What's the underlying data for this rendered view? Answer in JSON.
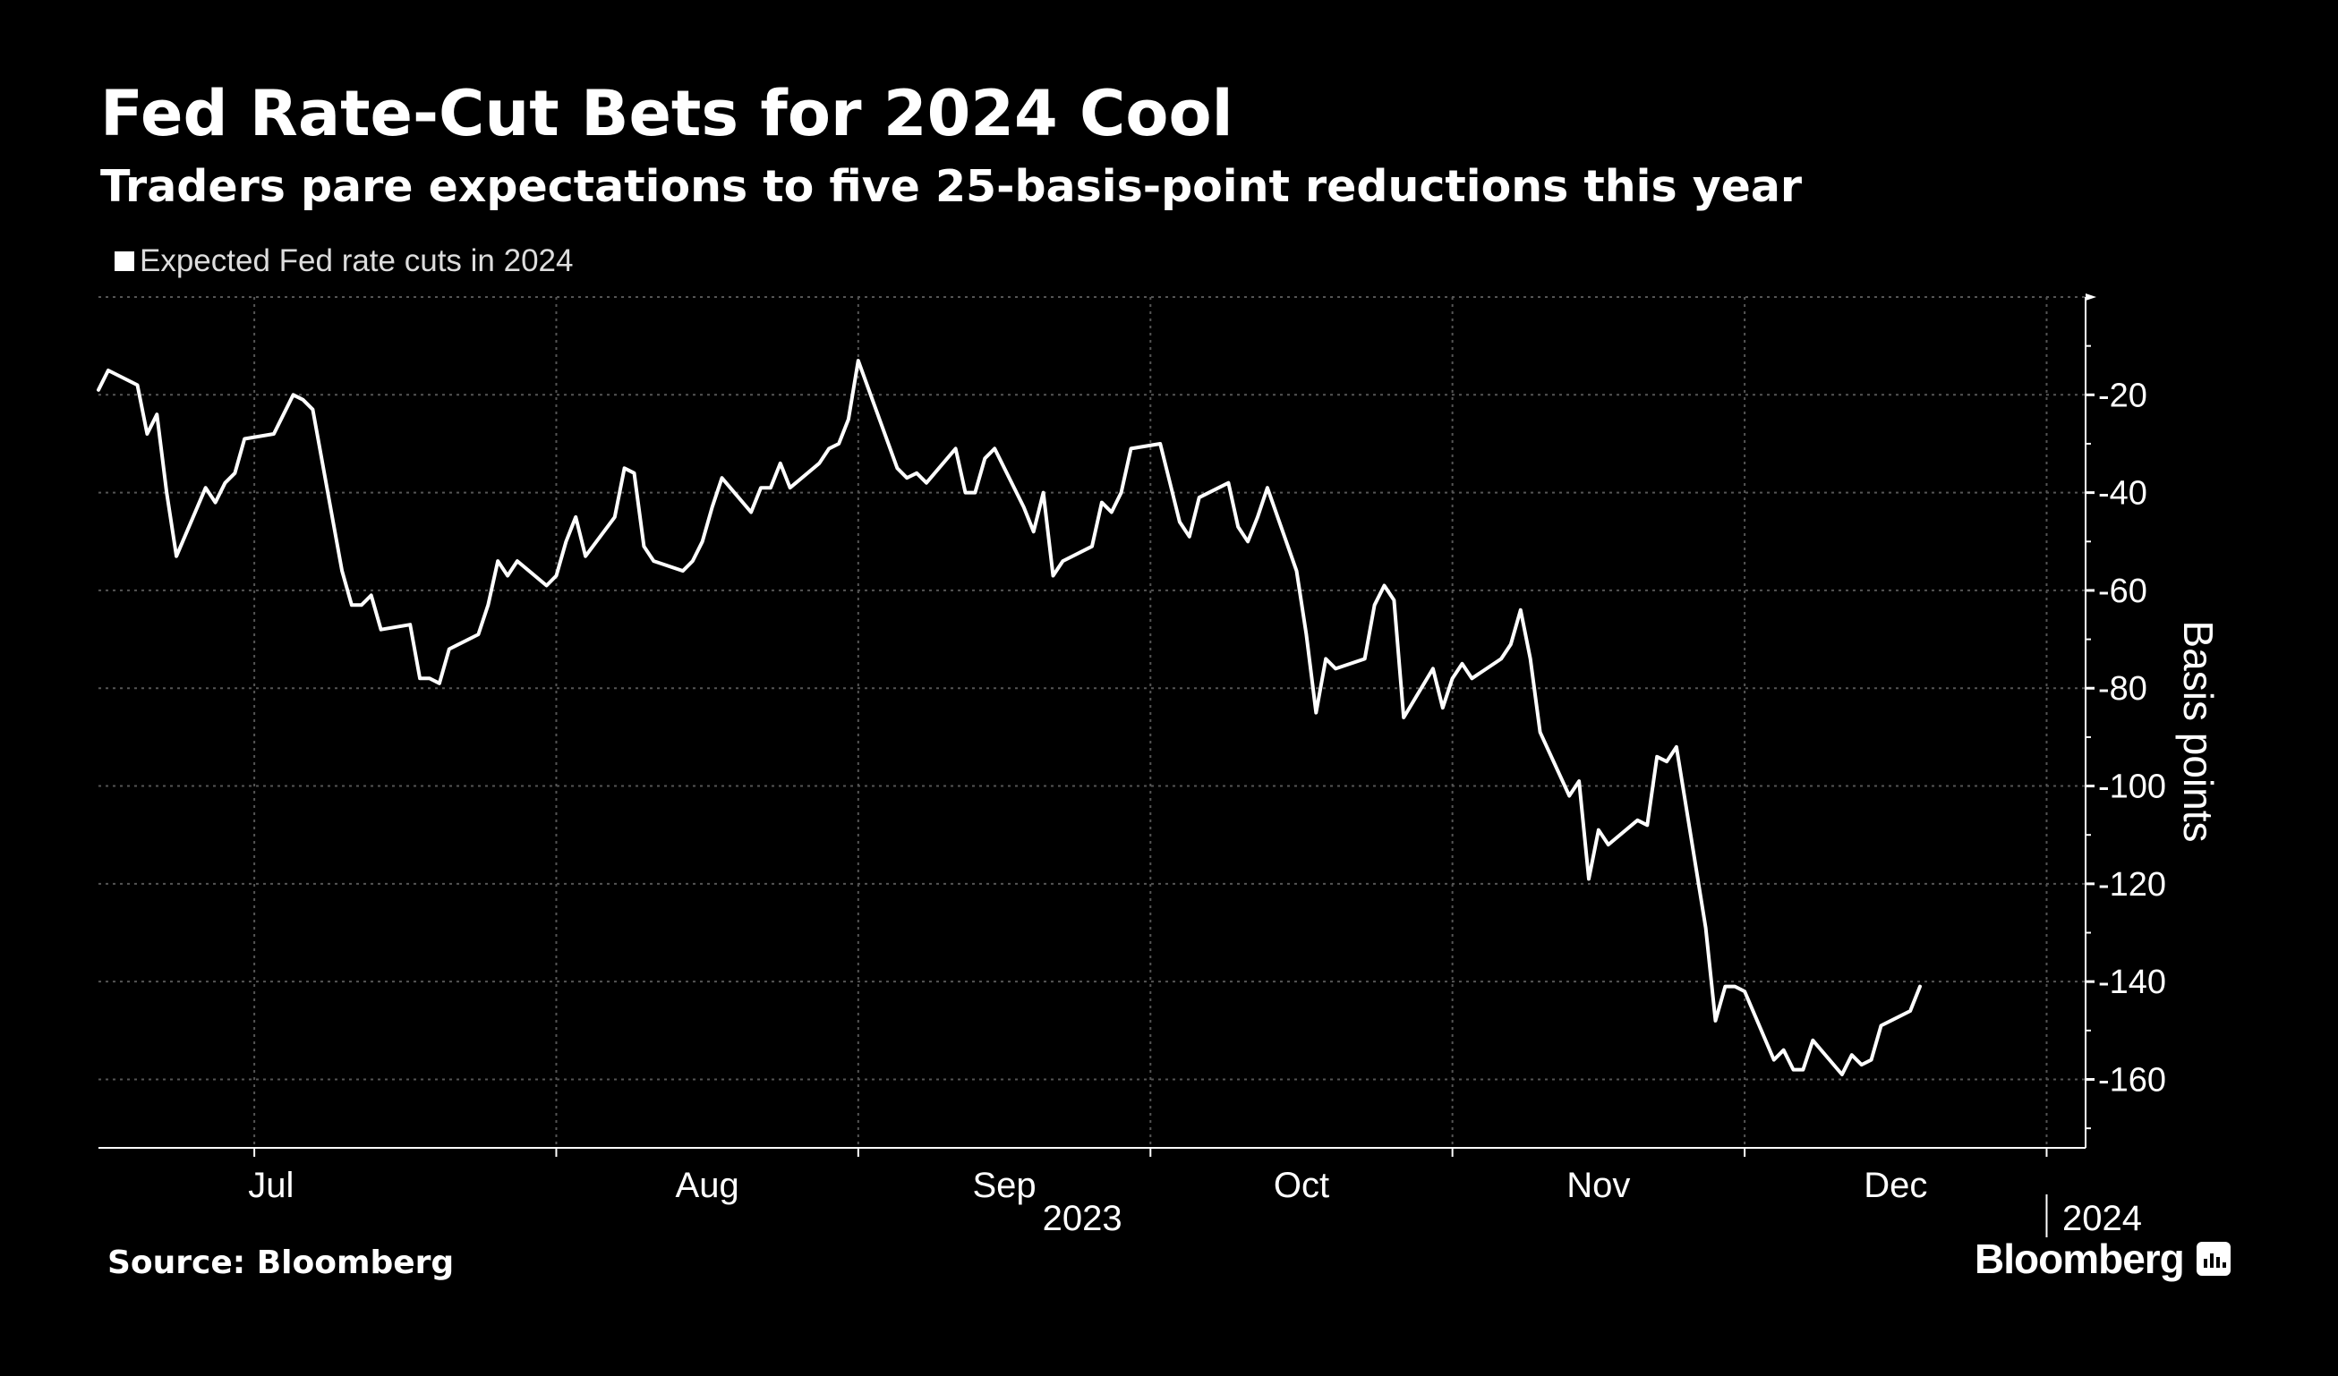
{
  "header": {
    "title": "Fed Rate-Cut Bets for 2024 Cool",
    "subtitle": "Traders pare expectations to five 25-basis-point reductions this year"
  },
  "legend": {
    "label": "Expected Fed rate cuts in 2024",
    "color": "#ffffff"
  },
  "footer": {
    "source": "Source: Bloomberg",
    "brand": "Bloomberg",
    "brand_icon": "bloomberg-chart-icon"
  },
  "colors": {
    "background": "#000000",
    "line": "#ffffff",
    "grid": "#555555",
    "text": "#ffffff"
  },
  "chart_data": {
    "type": "line",
    "title": "Fed Rate-Cut Bets for 2024 Cool",
    "subtitle": "Traders pare expectations to five 25-basis-point reductions this year",
    "ylabel": "Basis points",
    "xlabel": "",
    "y_inverted": true,
    "ylim": [
      0,
      174
    ],
    "xlim": [
      "2023-06-15",
      "2024-01-05"
    ],
    "y_ticks": [
      20,
      40,
      60,
      80,
      100,
      120,
      140,
      160
    ],
    "y_tick_labels": [
      "-20",
      "-40",
      "-60",
      "-80",
      "-100",
      "-120",
      "-140",
      "-160"
    ],
    "x_ticks": [
      {
        "label": "Jul",
        "date": "2023-07-01"
      },
      {
        "label": "Aug",
        "date": "2023-08-01"
      },
      {
        "label": "Sep",
        "date": "2023-09-01"
      },
      {
        "label": "Oct",
        "date": "2023-10-01"
      },
      {
        "label": "Nov",
        "date": "2023-11-01"
      },
      {
        "label": "Dec",
        "date": "2023-12-01"
      }
    ],
    "year_labels": [
      {
        "label": "2023",
        "date": "2023-09-24"
      },
      {
        "label": "2024",
        "date": "2024-01-01"
      }
    ],
    "grid": true,
    "legend_position": "top-left",
    "series": [
      {
        "name": "Expected Fed rate cuts in 2024",
        "color": "#ffffff",
        "points": [
          [
            "2023-06-15",
            -19
          ],
          [
            "2023-06-16",
            -15
          ],
          [
            "2023-06-19",
            -18
          ],
          [
            "2023-06-20",
            -28
          ],
          [
            "2023-06-21",
            -24
          ],
          [
            "2023-06-22",
            -40
          ],
          [
            "2023-06-23",
            -53
          ],
          [
            "2023-06-26",
            -39
          ],
          [
            "2023-06-27",
            -42
          ],
          [
            "2023-06-28",
            -38
          ],
          [
            "2023-06-29",
            -36
          ],
          [
            "2023-06-30",
            -29
          ],
          [
            "2023-07-03",
            -28
          ],
          [
            "2023-07-05",
            -20
          ],
          [
            "2023-07-06",
            -21
          ],
          [
            "2023-07-07",
            -23
          ],
          [
            "2023-07-10",
            -56
          ],
          [
            "2023-07-11",
            -63
          ],
          [
            "2023-07-12",
            -63
          ],
          [
            "2023-07-13",
            -61
          ],
          [
            "2023-07-14",
            -68
          ],
          [
            "2023-07-17",
            -67
          ],
          [
            "2023-07-18",
            -78
          ],
          [
            "2023-07-19",
            -78
          ],
          [
            "2023-07-20",
            -79
          ],
          [
            "2023-07-21",
            -72
          ],
          [
            "2023-07-24",
            -69
          ],
          [
            "2023-07-25",
            -63
          ],
          [
            "2023-07-26",
            -54
          ],
          [
            "2023-07-27",
            -57
          ],
          [
            "2023-07-28",
            -54
          ],
          [
            "2023-07-31",
            -59
          ],
          [
            "2023-08-01",
            -57
          ],
          [
            "2023-08-02",
            -50
          ],
          [
            "2023-08-03",
            -45
          ],
          [
            "2023-08-04",
            -53
          ],
          [
            "2023-08-07",
            -45
          ],
          [
            "2023-08-08",
            -35
          ],
          [
            "2023-08-09",
            -36
          ],
          [
            "2023-08-10",
            -51
          ],
          [
            "2023-08-11",
            -54
          ],
          [
            "2023-08-14",
            -56
          ],
          [
            "2023-08-15",
            -54
          ],
          [
            "2023-08-16",
            -50
          ],
          [
            "2023-08-17",
            -43
          ],
          [
            "2023-08-18",
            -37
          ],
          [
            "2023-08-21",
            -44
          ],
          [
            "2023-08-22",
            -39
          ],
          [
            "2023-08-23",
            -39
          ],
          [
            "2023-08-24",
            -34
          ],
          [
            "2023-08-25",
            -39
          ],
          [
            "2023-08-28",
            -34
          ],
          [
            "2023-08-29",
            -31
          ],
          [
            "2023-08-30",
            -30
          ],
          [
            "2023-08-31",
            -25
          ],
          [
            "2023-09-01",
            -13
          ],
          [
            "2023-09-05",
            -35
          ],
          [
            "2023-09-06",
            -37
          ],
          [
            "2023-09-07",
            -36
          ],
          [
            "2023-09-08",
            -38
          ],
          [
            "2023-09-11",
            -31
          ],
          [
            "2023-09-12",
            -40
          ],
          [
            "2023-09-13",
            -40
          ],
          [
            "2023-09-14",
            -33
          ],
          [
            "2023-09-15",
            -31
          ],
          [
            "2023-09-18",
            -43
          ],
          [
            "2023-09-19",
            -48
          ],
          [
            "2023-09-20",
            -40
          ],
          [
            "2023-09-21",
            -57
          ],
          [
            "2023-09-22",
            -54
          ],
          [
            "2023-09-25",
            -51
          ],
          [
            "2023-09-26",
            -42
          ],
          [
            "2023-09-27",
            -44
          ],
          [
            "2023-09-28",
            -40
          ],
          [
            "2023-09-29",
            -31
          ],
          [
            "2023-10-02",
            -30
          ],
          [
            "2023-10-03",
            -38
          ],
          [
            "2023-10-04",
            -46
          ],
          [
            "2023-10-05",
            -49
          ],
          [
            "2023-10-06",
            -41
          ],
          [
            "2023-10-09",
            -38
          ],
          [
            "2023-10-10",
            -47
          ],
          [
            "2023-10-11",
            -50
          ],
          [
            "2023-10-12",
            -45
          ],
          [
            "2023-10-13",
            -39
          ],
          [
            "2023-10-16",
            -56
          ],
          [
            "2023-10-17",
            -69
          ],
          [
            "2023-10-18",
            -85
          ],
          [
            "2023-10-19",
            -74
          ],
          [
            "2023-10-20",
            -76
          ],
          [
            "2023-10-23",
            -74
          ],
          [
            "2023-10-24",
            -63
          ],
          [
            "2023-10-25",
            -59
          ],
          [
            "2023-10-26",
            -62
          ],
          [
            "2023-10-27",
            -86
          ],
          [
            "2023-10-30",
            -76
          ],
          [
            "2023-10-31",
            -84
          ],
          [
            "2023-11-01",
            -78
          ],
          [
            "2023-11-02",
            -75
          ],
          [
            "2023-11-03",
            -78
          ],
          [
            "2023-11-06",
            -74
          ],
          [
            "2023-11-07",
            -71
          ],
          [
            "2023-11-08",
            -64
          ],
          [
            "2023-11-09",
            -74
          ],
          [
            "2023-11-10",
            -89
          ],
          [
            "2023-11-13",
            -102
          ],
          [
            "2023-11-14",
            -99
          ],
          [
            "2023-11-15",
            -119
          ],
          [
            "2023-11-16",
            -109
          ],
          [
            "2023-11-17",
            -112
          ],
          [
            "2023-11-20",
            -107
          ],
          [
            "2023-11-21",
            -108
          ],
          [
            "2023-11-22",
            -94
          ],
          [
            "2023-11-23",
            -95
          ],
          [
            "2023-11-24",
            -92
          ],
          [
            "2023-11-27",
            -129
          ],
          [
            "2023-11-28",
            -148
          ],
          [
            "2023-11-29",
            -141
          ],
          [
            "2023-11-30",
            -141
          ],
          [
            "2023-12-01",
            -142
          ],
          [
            "2023-12-04",
            -156
          ],
          [
            "2023-12-05",
            -154
          ],
          [
            "2023-12-06",
            -158
          ],
          [
            "2023-12-07",
            -158
          ],
          [
            "2023-12-08",
            -152
          ],
          [
            "2023-12-11",
            -159
          ],
          [
            "2023-12-12",
            -155
          ],
          [
            "2023-12-13",
            -157
          ],
          [
            "2023-12-14",
            -156
          ],
          [
            "2023-12-15",
            -149
          ],
          [
            "2023-12-18",
            -146
          ],
          [
            "2023-12-19",
            -141
          ]
        ]
      }
    ]
  }
}
